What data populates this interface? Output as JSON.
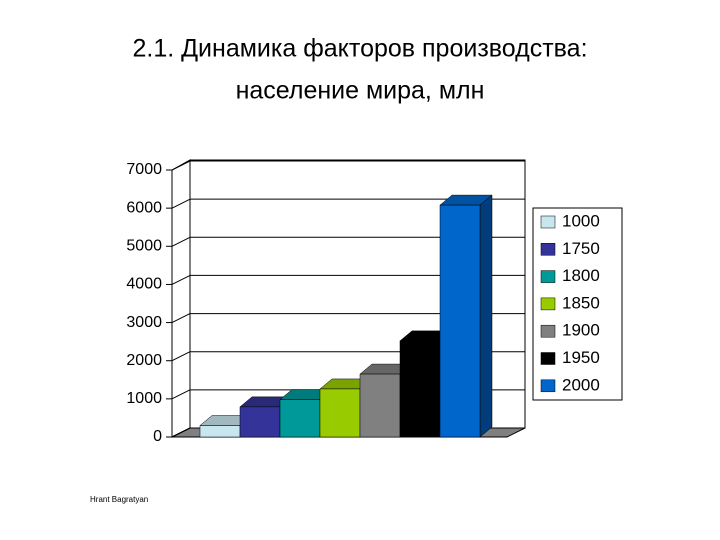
{
  "chart_data": {
    "type": "bar3d",
    "title": [
      "2.1. Динамика факторов производства:",
      "население мира, млн"
    ],
    "footer": "Hrant Bagratyan",
    "categories": [
      null
    ],
    "series": [
      {
        "name": "1000",
        "color": "#c8e6ee",
        "values": [
          300
        ]
      },
      {
        "name": "1750",
        "color": "#333399",
        "values": [
          790
        ]
      },
      {
        "name": "1800",
        "color": "#009999",
        "values": [
          980
        ]
      },
      {
        "name": "1850",
        "color": "#99cc00",
        "values": [
          1260
        ]
      },
      {
        "name": "1900",
        "color": "#808080",
        "values": [
          1650
        ]
      },
      {
        "name": "1950",
        "color": "#000000",
        "values": [
          2520
        ]
      },
      {
        "name": "2000",
        "color": "#0066cc",
        "values": [
          6080
        ]
      }
    ],
    "ylim": [
      0,
      7000
    ],
    "yticks": [
      0,
      1000,
      2000,
      3000,
      4000,
      5000,
      6000,
      7000
    ],
    "grid": true,
    "legend": "right"
  }
}
